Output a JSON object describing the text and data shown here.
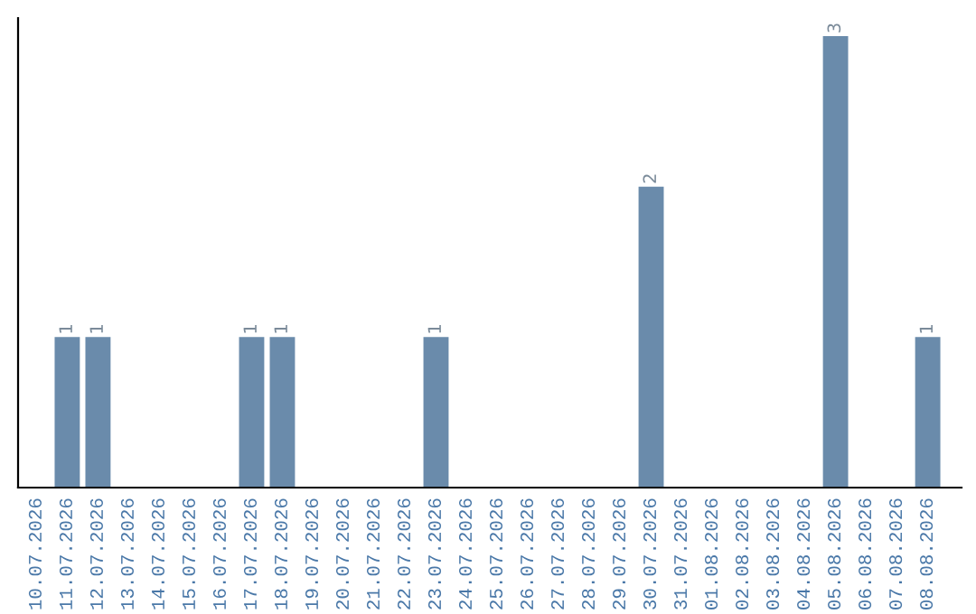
{
  "chart_data": {
    "type": "bar",
    "categories": [
      "10.07.2026",
      "11.07.2026",
      "12.07.2026",
      "13.07.2026",
      "14.07.2026",
      "15.07.2026",
      "16.07.2026",
      "17.07.2026",
      "18.07.2026",
      "19.07.2026",
      "20.07.2026",
      "21.07.2026",
      "22.07.2026",
      "23.07.2026",
      "24.07.2026",
      "25.07.2026",
      "26.07.2026",
      "27.07.2026",
      "28.07.2026",
      "29.07.2026",
      "30.07.2026",
      "31.07.2026",
      "01.08.2026",
      "02.08.2026",
      "03.08.2026",
      "04.08.2026",
      "05.08.2026",
      "06.08.2026",
      "07.08.2026",
      "08.08.2026"
    ],
    "values": [
      0,
      1,
      1,
      0,
      0,
      0,
      0,
      1,
      1,
      0,
      0,
      0,
      0,
      1,
      0,
      0,
      0,
      0,
      0,
      0,
      2,
      0,
      0,
      0,
      0,
      0,
      3,
      0,
      0,
      1
    ],
    "value_labels": [
      null,
      "1",
      "1",
      null,
      null,
      null,
      null,
      "1",
      "1",
      null,
      null,
      null,
      null,
      "1",
      null,
      null,
      null,
      null,
      null,
      null,
      "2",
      null,
      null,
      null,
      null,
      null,
      "3",
      null,
      null,
      "1"
    ],
    "color": "#6a8bab",
    "grid": false,
    "legend": false
  }
}
